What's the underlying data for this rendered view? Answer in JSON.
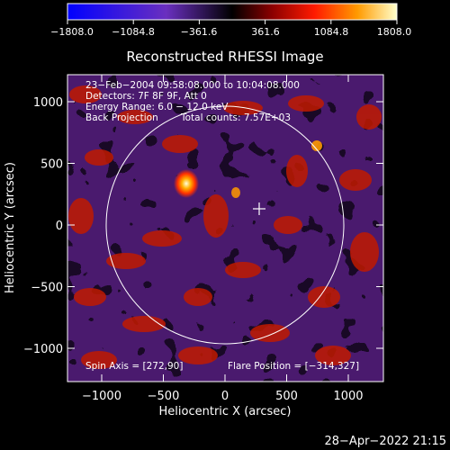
{
  "colorbar": {
    "ticks": [
      "−1808.0",
      "−1084.8",
      "−361.6",
      "361.6",
      "1084.8",
      "1808.0"
    ]
  },
  "plot": {
    "title": "Reconstructed RHESSI Image",
    "xlabel": "Heliocentric X (arcsec)",
    "ylabel": "Heliocentric Y (arcsec)",
    "x_ticks": [
      "−1000",
      "−500",
      "0",
      "500",
      "1000"
    ],
    "y_ticks": [
      "1000",
      "500",
      "0",
      "−500",
      "−1000"
    ]
  },
  "info": {
    "line1": "23−Feb−2004 09:58:08.000 to 10:04:08.000",
    "line2": "Detectors: 7F 8F 9F, Att 0",
    "line3": "Energy Range: 6.0 − 12.0 keV",
    "line4_left": "Back Projection",
    "line4_right": "Total counts: 7.57E+03",
    "spin_axis": "Spin Axis = [272,90]",
    "flare_position": "Flare Position = [−314,327]"
  },
  "timestamp": "28−Apr−2022 21:15"
}
